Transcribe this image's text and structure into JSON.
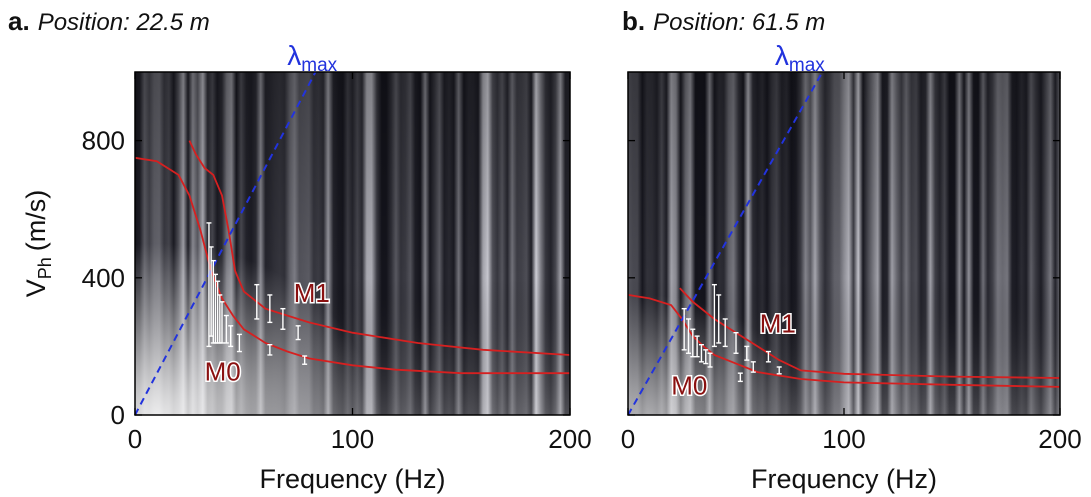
{
  "chart_data": [
    {
      "type": "line",
      "panel": "a.",
      "title": "Position: 22.5 m",
      "x_label": "Frequency (Hz)",
      "y_label": "V",
      "y_label_sub": "Ph",
      "y_label_unit": "(m/s)",
      "xlim": [
        0,
        200
      ],
      "ylim": [
        0,
        1000
      ],
      "xticks": [
        0,
        100,
        200
      ],
      "yticks": [
        0,
        400,
        800
      ],
      "ytick_labels": true,
      "series": [
        {
          "name": "M0",
          "color": "#d62020",
          "x": [
            0,
            10,
            20,
            25,
            30,
            35,
            40,
            45,
            50,
            60,
            70,
            80,
            100,
            120,
            150,
            200
          ],
          "values": [
            750,
            740,
            700,
            640,
            540,
            420,
            340,
            290,
            250,
            210,
            185,
            165,
            145,
            132,
            122,
            122
          ]
        },
        {
          "name": "M1",
          "color": "#d62020",
          "x": [
            25,
            28,
            32,
            36,
            40,
            43,
            46,
            50,
            60,
            80,
            100,
            130,
            160,
            200
          ],
          "values": [
            800,
            760,
            720,
            700,
            640,
            540,
            420,
            360,
            310,
            270,
            240,
            210,
            190,
            175
          ]
        },
        {
          "name": "λ",
          "name_sub": "max",
          "color": "#2233dd",
          "dashed": true,
          "x": [
            0,
            83
          ],
          "values": [
            0,
            1000
          ]
        }
      ],
      "error_bars": {
        "color": "#ffffff",
        "x": [
          34,
          35,
          36,
          37,
          38,
          39,
          40,
          42,
          44,
          48,
          56,
          62,
          68,
          75,
          62,
          78
        ],
        "values": [
          380,
          360,
          330,
          310,
          300,
          280,
          270,
          250,
          230,
          210,
          330,
          310,
          280,
          240,
          190,
          160
        ],
        "errors": [
          180,
          130,
          120,
          100,
          90,
          70,
          60,
          40,
          30,
          25,
          50,
          40,
          30,
          20,
          15,
          12
        ]
      }
    },
    {
      "type": "line",
      "panel": "b.",
      "title": "Position: 61.5 m",
      "x_label": "Frequency (Hz)",
      "xlim": [
        0,
        200
      ],
      "ylim": [
        0,
        1000
      ],
      "xticks": [
        0,
        100,
        200
      ],
      "yticks": [
        0,
        400,
        800
      ],
      "ytick_labels": false,
      "series": [
        {
          "name": "M0",
          "color": "#d62020",
          "x": [
            0,
            10,
            20,
            25,
            30,
            35,
            40,
            50,
            60,
            80,
            100,
            150,
            200
          ],
          "values": [
            350,
            340,
            320,
            280,
            230,
            200,
            175,
            150,
            125,
            105,
            95,
            88,
            82
          ]
        },
        {
          "name": "M1",
          "color": "#d62020",
          "x": [
            24,
            30,
            40,
            50,
            60,
            70,
            80,
            100,
            150,
            200
          ],
          "values": [
            370,
            330,
            280,
            240,
            200,
            160,
            130,
            120,
            112,
            108
          ]
        },
        {
          "name": "λ",
          "name_sub": "max",
          "color": "#2233dd",
          "dashed": true,
          "x": [
            0,
            90
          ],
          "values": [
            0,
            1000
          ]
        }
      ],
      "error_bars": {
        "color": "#ffffff",
        "x": [
          26,
          28,
          30,
          32,
          34,
          36,
          38,
          40,
          42,
          45,
          50,
          55,
          58,
          52,
          65,
          70
        ],
        "values": [
          250,
          230,
          210,
          200,
          180,
          170,
          160,
          290,
          280,
          240,
          210,
          180,
          140,
          110,
          170,
          130
        ],
        "errors": [
          60,
          50,
          40,
          30,
          25,
          20,
          20,
          90,
          70,
          40,
          30,
          20,
          15,
          12,
          15,
          10
        ]
      }
    }
  ]
}
